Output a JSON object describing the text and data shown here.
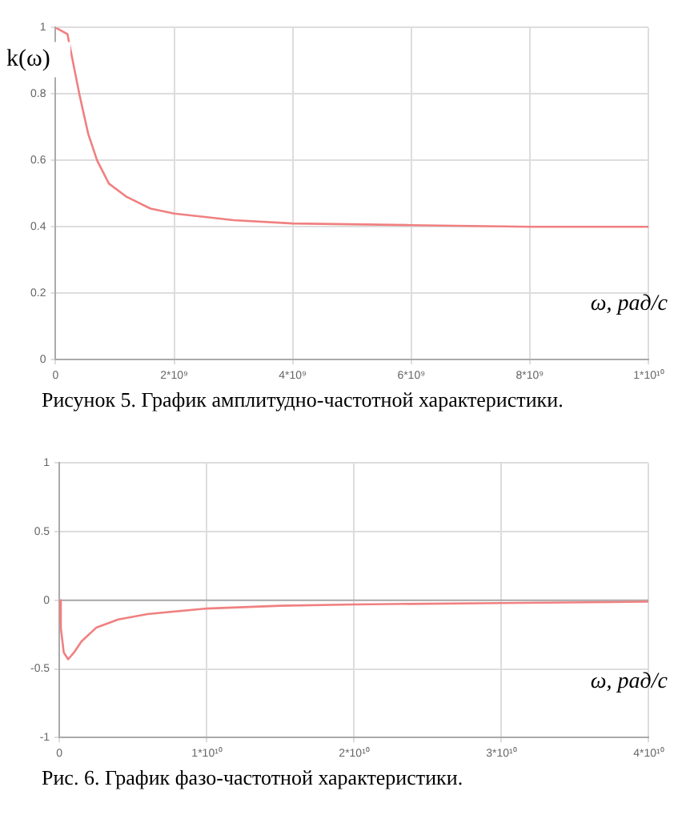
{
  "chart_data": [
    {
      "type": "line",
      "ylabel": "k(ω)",
      "xlabel": "ω, рад/с",
      "annotations": [
        "Рисунок 5. График амплитудно-частотной характеристики."
      ],
      "series": [
        {
          "color": "#f08080",
          "x": [
            0,
            200000000,
            400000000,
            550000000,
            700000000,
            900000000,
            1200000000,
            1600000000,
            2000000000,
            3000000000,
            4000000000,
            6000000000,
            8000000000,
            10000000000
          ],
          "values": [
            1,
            0.98,
            0.8,
            0.68,
            0.6,
            0.53,
            0.49,
            0.455,
            0.44,
            0.42,
            0.41,
            0.405,
            0.4,
            0.4
          ]
        }
      ],
      "xlim": [
        0,
        10000000000
      ],
      "xticks": [
        0,
        {
          "value": 2000000000,
          "label": "2*10⁹"
        },
        {
          "value": 4000000000,
          "label": "4*10⁹"
        },
        {
          "value": 6000000000,
          "label": "6*10⁹"
        },
        {
          "value": 8000000000,
          "label": "8*10⁹"
        },
        {
          "value": 10000000000,
          "label": "1*10¹⁰"
        }
      ],
      "ylim": [
        0,
        1
      ],
      "yticks": [
        0,
        0.2,
        0.4,
        0.6,
        0.8,
        1
      ],
      "grid": true,
      "legend": false,
      "marker": "none",
      "line_style": "solid"
    },
    {
      "type": "line",
      "xlabel": "ω, рад/с",
      "annotations": [
        "Рис. 6. График фазо-частотной характеристики."
      ],
      "series": [
        {
          "color": "#f08080",
          "x": [
            0,
            100000000,
            300000000,
            600000000,
            1000000000,
            1500000000,
            2500000000,
            4000000000,
            6000000000,
            10000000000,
            15000000000,
            20000000000,
            30000000000,
            40000000000
          ],
          "values": [
            0,
            -0.2,
            -0.38,
            -0.43,
            -0.38,
            -0.3,
            -0.2,
            -0.14,
            -0.1,
            -0.06,
            -0.04,
            -0.03,
            -0.02,
            -0.01
          ]
        }
      ],
      "xlim": [
        0,
        40000000000
      ],
      "xticks": [
        0,
        {
          "value": 10000000000,
          "label": "1*10¹⁰"
        },
        {
          "value": 20000000000,
          "label": "2*10¹⁰"
        },
        {
          "value": 30000000000,
          "label": "3*10¹⁰"
        },
        {
          "value": 40000000000,
          "label": "4*10¹⁰"
        }
      ],
      "ylim": [
        -1,
        1
      ],
      "yticks": [
        -1,
        -0.5,
        0,
        0.5,
        1
      ],
      "ref_lines": [
        {
          "axis": "y",
          "value": 0,
          "color": "#aaaaaa"
        }
      ],
      "grid": true,
      "legend": false,
      "marker": "none",
      "line_style": "solid"
    }
  ]
}
